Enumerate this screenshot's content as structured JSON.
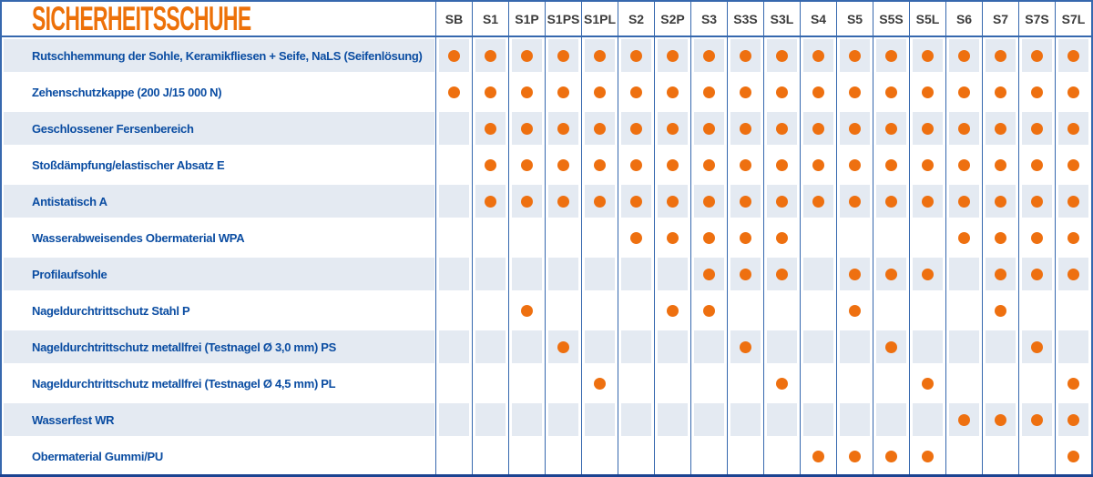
{
  "title": "SICHERHEITSSCHUHE",
  "chart_data": {
    "type": "table",
    "title": "SICHERHEITSSCHUHE",
    "legend_position": "none",
    "mark_meaning": "orange-dot = Anforderung erfüllt / feature applies",
    "columns": [
      "SB",
      "S1",
      "S1P",
      "S1PS",
      "S1PL",
      "S2",
      "S2P",
      "S3",
      "S3S",
      "S3L",
      "S4",
      "S5",
      "S5S",
      "S5L",
      "S6",
      "S7",
      "S7S",
      "S7L"
    ],
    "rows": [
      {
        "label": "Rutschhemmung der Sohle, Keramikfliesen + Seife, NaLS (Seifenlösung)",
        "dots": [
          1,
          1,
          1,
          1,
          1,
          1,
          1,
          1,
          1,
          1,
          1,
          1,
          1,
          1,
          1,
          1,
          1,
          1
        ]
      },
      {
        "label": "Zehenschutzkappe (200 J/15 000 N)",
        "dots": [
          1,
          1,
          1,
          1,
          1,
          1,
          1,
          1,
          1,
          1,
          1,
          1,
          1,
          1,
          1,
          1,
          1,
          1
        ]
      },
      {
        "label": "Geschlossener Fersenbereich",
        "dots": [
          0,
          1,
          1,
          1,
          1,
          1,
          1,
          1,
          1,
          1,
          1,
          1,
          1,
          1,
          1,
          1,
          1,
          1
        ]
      },
      {
        "label": "Stoßdämpfung/elastischer Absatz E",
        "dots": [
          0,
          1,
          1,
          1,
          1,
          1,
          1,
          1,
          1,
          1,
          1,
          1,
          1,
          1,
          1,
          1,
          1,
          1
        ]
      },
      {
        "label": "Antistatisch A",
        "dots": [
          0,
          1,
          1,
          1,
          1,
          1,
          1,
          1,
          1,
          1,
          1,
          1,
          1,
          1,
          1,
          1,
          1,
          1
        ]
      },
      {
        "label": "Wasserabweisendes Obermaterial WPA",
        "dots": [
          0,
          0,
          0,
          0,
          0,
          1,
          1,
          1,
          1,
          1,
          0,
          0,
          0,
          0,
          1,
          1,
          1,
          1
        ]
      },
      {
        "label": "Profilaufsohle",
        "dots": [
          0,
          0,
          0,
          0,
          0,
          0,
          0,
          1,
          1,
          1,
          0,
          1,
          1,
          1,
          0,
          1,
          1,
          1
        ]
      },
      {
        "label": "Nageldurchtrittschutz Stahl P",
        "dots": [
          0,
          0,
          1,
          0,
          0,
          0,
          1,
          1,
          0,
          0,
          0,
          1,
          0,
          0,
          0,
          1,
          0,
          0
        ]
      },
      {
        "label": "Nageldurchtrittschutz metallfrei (Testnagel Ø 3,0 mm) PS",
        "dots": [
          0,
          0,
          0,
          1,
          0,
          0,
          0,
          0,
          1,
          0,
          0,
          0,
          1,
          0,
          0,
          0,
          1,
          0
        ]
      },
      {
        "label": "Nageldurchtrittschutz metallfrei (Testnagel Ø 4,5 mm) PL",
        "dots": [
          0,
          0,
          0,
          0,
          1,
          0,
          0,
          0,
          0,
          1,
          0,
          0,
          0,
          1,
          0,
          0,
          0,
          1
        ]
      },
      {
        "label": "Wasserfest WR",
        "dots": [
          0,
          0,
          0,
          0,
          0,
          0,
          0,
          0,
          0,
          0,
          0,
          0,
          0,
          0,
          1,
          1,
          1,
          1
        ]
      },
      {
        "label": "Obermaterial Gummi/PU",
        "dots": [
          0,
          0,
          0,
          0,
          0,
          0,
          0,
          0,
          0,
          0,
          1,
          1,
          1,
          1,
          0,
          0,
          0,
          1
        ]
      }
    ]
  },
  "colors": {
    "title_orange": "#ED7109",
    "dot_orange": "#EE7010",
    "label_blue": "#0B4DA2",
    "header_text_gray": "#3C3C3C",
    "grid_line_blue": "#3668AE",
    "row_shade": "#E4EAF2",
    "bottom_bar_navy": "#1B4391"
  }
}
